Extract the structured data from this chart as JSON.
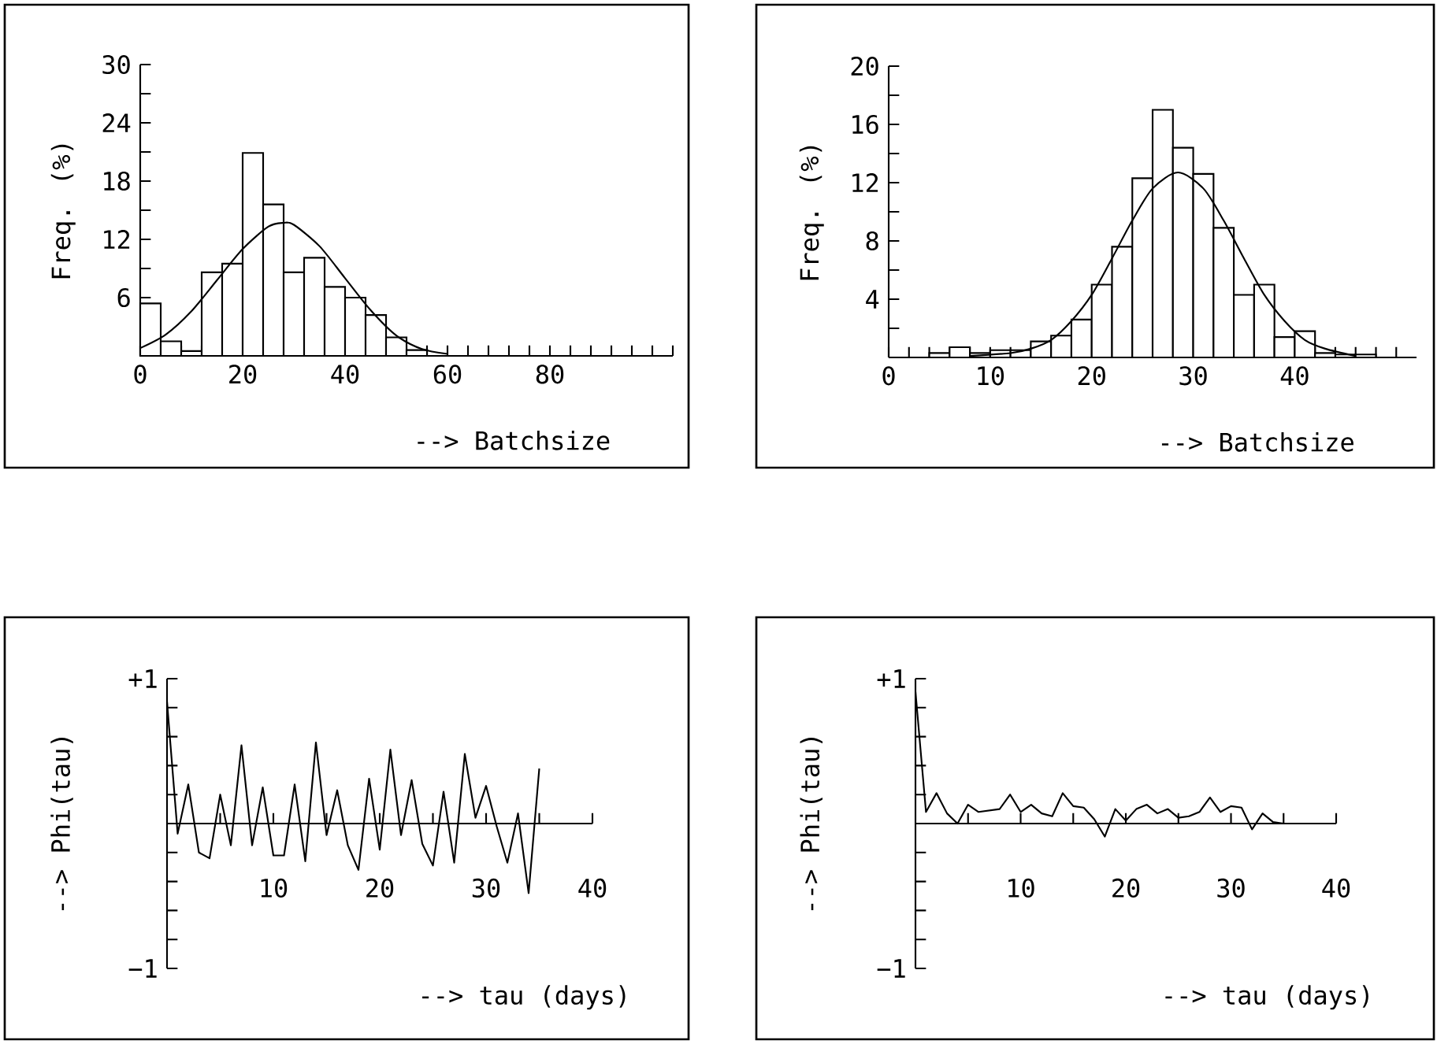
{
  "chart_data": [
    {
      "type": "histogram",
      "ylabel": "Freq. (%)",
      "xlabel": "--> Batchsize",
      "color": "#000000",
      "bins": [
        0,
        4,
        8,
        12,
        16,
        20,
        24,
        28,
        32,
        36,
        40,
        44,
        48,
        52,
        56
      ],
      "values": [
        5.4,
        1.5,
        0.5,
        8.6,
        9.5,
        20.9,
        15.6,
        8.6,
        10.1,
        7.1,
        6.0,
        4.2,
        1.9,
        0.6
      ],
      "series": [
        {
          "type": "line",
          "color": "#000000",
          "x": [
            0,
            5,
            10,
            15,
            20,
            25,
            28,
            30,
            35,
            40,
            45,
            50,
            55,
            60
          ],
          "values": [
            0.8,
            2.2,
            4.6,
            7.8,
            11.0,
            13.3,
            13.7,
            13.5,
            11.3,
            8.0,
            4.7,
            2.1,
            0.7,
            0.2
          ]
        }
      ],
      "xlim": [
        0,
        104
      ],
      "ylim": [
        0,
        30
      ],
      "xticks": [
        0,
        {
          "value": 4,
          "label": null
        },
        {
          "value": 8,
          "label": null
        },
        {
          "value": 12,
          "label": null
        },
        {
          "value": 16,
          "label": null
        },
        20,
        {
          "value": 24,
          "label": null
        },
        {
          "value": 28,
          "label": null
        },
        {
          "value": 32,
          "label": null
        },
        {
          "value": 36,
          "label": null
        },
        40,
        {
          "value": 44,
          "label": null
        },
        {
          "value": 48,
          "label": null
        },
        {
          "value": 52,
          "label": null
        },
        {
          "value": 56,
          "label": null
        },
        60,
        {
          "value": 64,
          "label": null
        },
        {
          "value": 68,
          "label": null
        },
        {
          "value": 72,
          "label": null
        },
        {
          "value": 76,
          "label": null
        },
        80,
        {
          "value": 84,
          "label": null
        },
        {
          "value": 88,
          "label": null
        },
        {
          "value": 92,
          "label": null
        },
        {
          "value": 96,
          "label": null
        },
        {
          "value": 100,
          "label": null
        },
        {
          "value": 104,
          "label": null
        }
      ],
      "yticks": [
        {
          "value": 0,
          "label": null
        },
        {
          "value": 3,
          "label": null
        },
        6,
        {
          "value": 9,
          "label": null
        },
        12,
        {
          "value": 15,
          "label": null
        },
        18,
        {
          "value": 21,
          "label": null
        },
        24,
        {
          "value": 27,
          "label": null
        },
        30
      ]
    },
    {
      "type": "histogram",
      "ylabel": "Freq. (%)",
      "xlabel": "--> Batchsize",
      "color": "#000000",
      "bins": [
        4,
        6,
        8,
        10,
        12,
        14,
        16,
        18,
        20,
        22,
        24,
        26,
        28,
        30,
        32,
        34,
        36,
        38,
        40,
        42,
        44,
        46,
        48
      ],
      "values": [
        0.3,
        0.7,
        0.3,
        0.5,
        0.5,
        1.1,
        1.5,
        2.6,
        5.0,
        7.6,
        12.3,
        17.0,
        14.4,
        12.6,
        8.9,
        4.3,
        5.0,
        1.4,
        1.8,
        0.3,
        0.2,
        0.2
      ],
      "series": [
        {
          "type": "line",
          "color": "#000000",
          "x": [
            8,
            12,
            14,
            16,
            18,
            20,
            22,
            24,
            26,
            28.5,
            31,
            33,
            35,
            37,
            39,
            41,
            43,
            46
          ],
          "values": [
            0.1,
            0.3,
            0.6,
            1.2,
            2.5,
            4.3,
            6.8,
            9.4,
            11.6,
            12.7,
            11.6,
            9.4,
            6.8,
            4.3,
            2.5,
            1.2,
            0.6,
            0.1
          ]
        }
      ],
      "xlim": [
        0,
        52
      ],
      "ylim": [
        0,
        20
      ],
      "xticks": [
        0,
        {
          "value": 2,
          "label": null
        },
        {
          "value": 4,
          "label": null
        },
        {
          "value": 6,
          "label": null
        },
        {
          "value": 8,
          "label": null
        },
        10,
        {
          "value": 12,
          "label": null
        },
        {
          "value": 14,
          "label": null
        },
        {
          "value": 16,
          "label": null
        },
        {
          "value": 18,
          "label": null
        },
        20,
        {
          "value": 22,
          "label": null
        },
        {
          "value": 24,
          "label": null
        },
        {
          "value": 26,
          "label": null
        },
        {
          "value": 28,
          "label": null
        },
        30,
        {
          "value": 32,
          "label": null
        },
        {
          "value": 34,
          "label": null
        },
        {
          "value": 36,
          "label": null
        },
        {
          "value": 38,
          "label": null
        },
        40,
        {
          "value": 42,
          "label": null
        },
        {
          "value": 44,
          "label": null
        },
        {
          "value": 46,
          "label": null
        },
        {
          "value": 48,
          "label": null
        },
        {
          "value": 50,
          "label": null
        }
      ],
      "yticks": [
        {
          "value": 0,
          "label": null
        },
        {
          "value": 2,
          "label": null
        },
        4,
        {
          "value": 6,
          "label": null
        },
        8,
        {
          "value": 10,
          "label": null
        },
        12,
        {
          "value": 14,
          "label": null
        },
        16,
        {
          "value": 18,
          "label": null
        },
        20
      ]
    },
    {
      "type": "line",
      "ylabel": "--> Phi(tau)",
      "xlabel": "--> tau (days)",
      "x": [
        0,
        1,
        2,
        3,
        4,
        5,
        6,
        7,
        8,
        9,
        10,
        11,
        12,
        13,
        14,
        15,
        16,
        17,
        18,
        19,
        20,
        21,
        22,
        23,
        24,
        25,
        26,
        27,
        28,
        29,
        30,
        31,
        32,
        33,
        34,
        35
      ],
      "series": [
        {
          "color": "#000000",
          "values": [
            0.84,
            -0.07,
            0.27,
            -0.2,
            -0.24,
            0.2,
            -0.15,
            0.54,
            -0.15,
            0.25,
            -0.22,
            -0.22,
            0.27,
            -0.26,
            0.56,
            -0.08,
            0.23,
            -0.15,
            -0.32,
            0.31,
            -0.18,
            0.51,
            -0.08,
            0.3,
            -0.14,
            -0.29,
            0.22,
            -0.27,
            0.48,
            0.04,
            0.26,
            -0.02,
            -0.27,
            0.07,
            -0.48,
            0.38
          ]
        }
      ],
      "xlim": [
        0,
        40
      ],
      "ylim": [
        -1,
        1
      ],
      "xticks": [
        {
          "value": 5,
          "label": null
        },
        10,
        {
          "value": 15,
          "label": null
        },
        20,
        {
          "value": 25,
          "label": null
        },
        30,
        {
          "value": 35,
          "label": null
        },
        40
      ],
      "yticks": [
        {
          "value": -1,
          "label": "−1"
        },
        {
          "value": -0.8,
          "label": null
        },
        {
          "value": -0.6,
          "label": null
        },
        {
          "value": -0.4,
          "label": null
        },
        {
          "value": -0.2,
          "label": null
        },
        {
          "value": 0.2,
          "label": null
        },
        {
          "value": 0.4,
          "label": null
        },
        {
          "value": 0.6,
          "label": null
        },
        {
          "value": 0.8,
          "label": null
        },
        {
          "value": 1,
          "label": "+1"
        }
      ]
    },
    {
      "type": "line",
      "ylabel": "--> Phi(tau)",
      "xlabel": "--> tau (days)",
      "x": [
        0,
        1,
        2,
        3,
        4,
        5,
        6,
        7,
        8,
        9,
        10,
        11,
        12,
        13,
        14,
        15,
        16,
        17,
        18,
        19,
        20,
        21,
        22,
        23,
        24,
        25,
        26,
        27,
        28,
        29,
        30,
        31,
        32,
        33,
        34,
        35
      ],
      "series": [
        {
          "color": "#000000",
          "values": [
            0.91,
            0.08,
            0.21,
            0.07,
            0.0,
            0.13,
            0.08,
            0.09,
            0.1,
            0.2,
            0.08,
            0.13,
            0.07,
            0.05,
            0.21,
            0.12,
            0.11,
            0.03,
            -0.09,
            0.1,
            0.02,
            0.1,
            0.13,
            0.07,
            0.1,
            0.04,
            0.05,
            0.08,
            0.18,
            0.08,
            0.12,
            0.11,
            -0.04,
            0.07,
            0.01,
            0.0
          ]
        }
      ],
      "xlim": [
        0,
        40
      ],
      "ylim": [
        -1,
        1
      ],
      "xticks": [
        {
          "value": 5,
          "label": null
        },
        10,
        {
          "value": 15,
          "label": null
        },
        20,
        {
          "value": 25,
          "label": null
        },
        30,
        {
          "value": 35,
          "label": null
        },
        40
      ],
      "yticks": [
        {
          "value": -1,
          "label": "−1"
        },
        {
          "value": -0.8,
          "label": null
        },
        {
          "value": -0.6,
          "label": null
        },
        {
          "value": -0.4,
          "label": null
        },
        {
          "value": -0.2,
          "label": null
        },
        {
          "value": 0.2,
          "label": null
        },
        {
          "value": 0.4,
          "label": null
        },
        {
          "value": 0.6,
          "label": null
        },
        {
          "value": 0.8,
          "label": null
        },
        {
          "value": 1,
          "label": "+1"
        }
      ]
    }
  ]
}
